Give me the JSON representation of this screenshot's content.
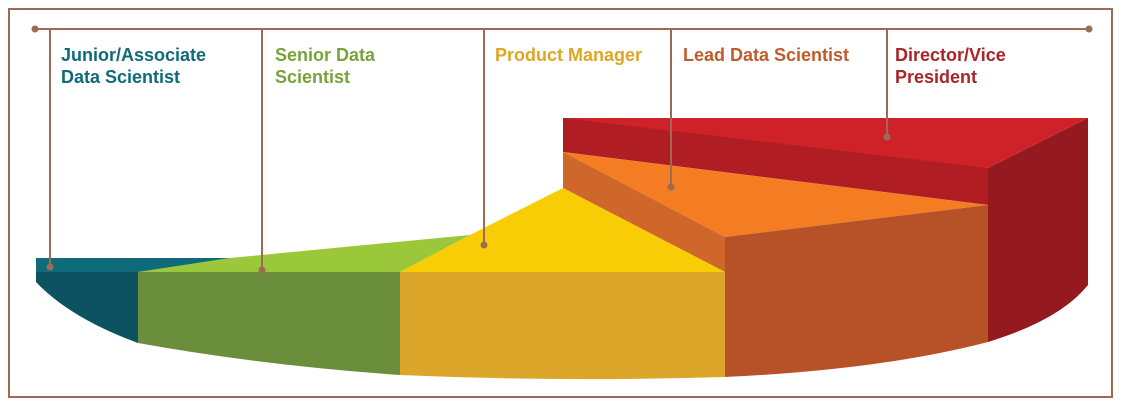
{
  "diagram": {
    "type": "3d-pie-segment-career-ladder",
    "segments": [
      {
        "label": "Junior/Associate Data Scientist",
        "label_lines": [
          "Junior/Associate",
          "Data Scientist"
        ],
        "color": "#0f6b7a",
        "order": 1
      },
      {
        "label": "Senior Data Scientist",
        "label_lines": [
          "Senior Data",
          "Scientist"
        ],
        "color": "#78a33b",
        "order": 2
      },
      {
        "label": "Product Manager",
        "label_lines": [
          "Product Manager"
        ],
        "color": "#dfa623",
        "order": 3
      },
      {
        "label": "Lead Data Scientist",
        "label_lines": [
          "Lead Data Scientist"
        ],
        "color": "#c25a2a",
        "order": 4
      },
      {
        "label": "Director/Vice President",
        "label_lines": [
          "Director/Vice",
          "President"
        ],
        "color": "#a8252a",
        "order": 5
      }
    ],
    "connector_color": "#9c6b55",
    "frame_color": "#9c6b55"
  }
}
